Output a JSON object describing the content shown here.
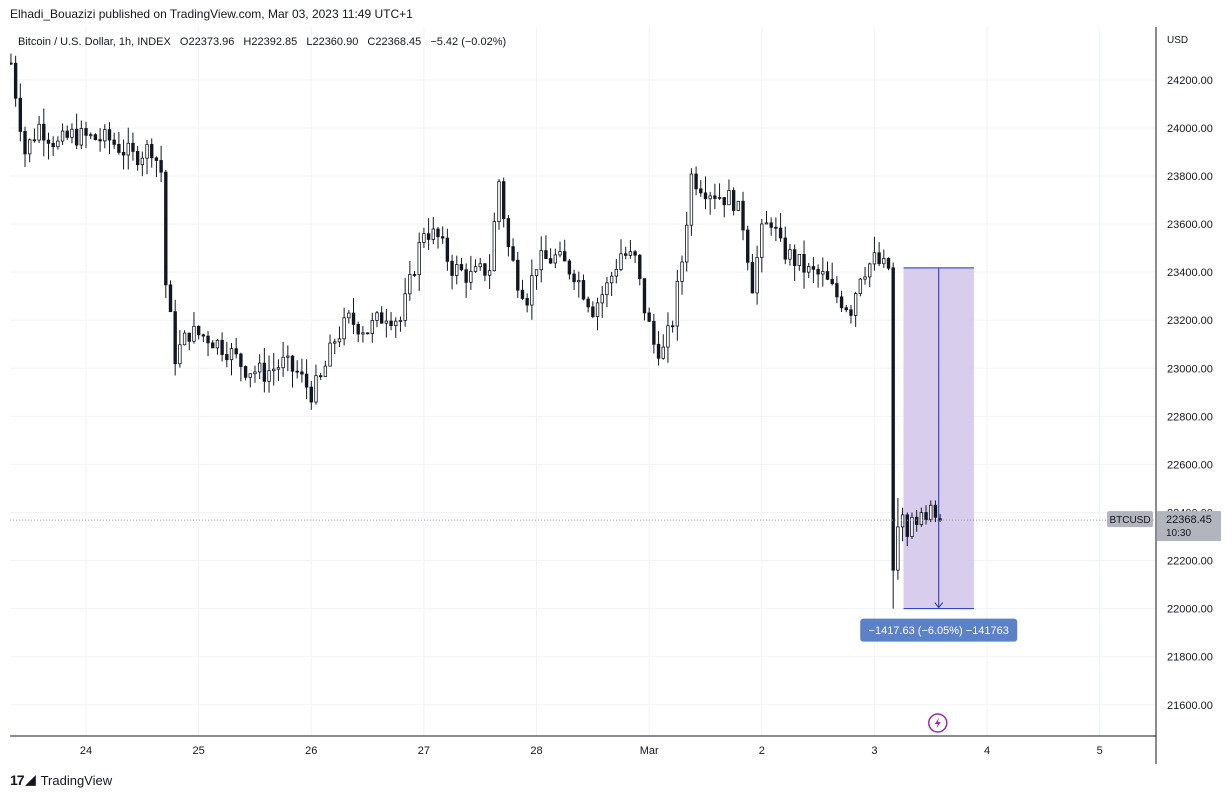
{
  "header": {
    "text": "Elhadi_Bouazizi published on TradingView.com, Mar 03, 2023 11:49 UTC+1"
  },
  "legend": {
    "symbol": "Bitcoin / U.S. Dollar, 1h, INDEX",
    "open_label": "O",
    "open": "22373.96",
    "high_label": "H",
    "high": "22392.85",
    "low_label": "L",
    "low": "22360.90",
    "close_label": "C",
    "close": "22368.45",
    "change": "−5.42 (−0.02%)"
  },
  "price_axis": {
    "currency": "USD"
  },
  "price_tag": {
    "symbol": "BTCUSD",
    "price": "22368.45",
    "countdown": "10:30"
  },
  "measure": {
    "label": "−1417.63 (−6.05%) −141763"
  },
  "footer": {
    "brand": "TradingView"
  },
  "colors": {
    "candle": "#131722",
    "grid": "#f0f3fa",
    "measure_fill": "#d1c4e9",
    "measure_line": "#1e32c8",
    "measure_label_bg": "#5b82c8",
    "price_tag_bg": "#b2b5be",
    "flash_icon": "#9c27b0"
  },
  "chart_data": {
    "type": "candlestick",
    "title": "Bitcoin / U.S. Dollar, 1h, INDEX",
    "ylabel": "USD",
    "ylim": [
      21470,
      24420
    ],
    "y_ticks": [
      21600,
      21800,
      22000,
      22200,
      22400,
      22600,
      22800,
      23000,
      23200,
      23400,
      23600,
      23800,
      24000,
      24200
    ],
    "x_ticks": [
      "24",
      "25",
      "26",
      "27",
      "28",
      "Mar",
      "2",
      "3",
      "4",
      "5"
    ],
    "x_tick_hours": [
      0,
      24,
      48,
      72,
      96,
      120,
      144,
      168,
      192,
      216
    ],
    "x_range_hours": [
      -16.2,
      228
    ],
    "grid": true,
    "last_price": 22368.45,
    "measure": {
      "start_hour": 171,
      "end_hour": 186,
      "from_price": 23418,
      "to_price": 22000,
      "change": -1417.63,
      "change_pct": -6.05
    },
    "anchors": [
      {
        "h": -16,
        "p": 24270
      },
      {
        "h": -13,
        "p": 23900
      },
      {
        "h": -10,
        "p": 24010
      },
      {
        "h": -6,
        "p": 23930
      },
      {
        "h": -3,
        "p": 23970
      },
      {
        "h": 0,
        "p": 23960
      },
      {
        "h": 5,
        "p": 23950
      },
      {
        "h": 10,
        "p": 23880
      },
      {
        "h": 14,
        "p": 23920
      },
      {
        "h": 16,
        "p": 23820
      },
      {
        "h": 17,
        "p": 23350
      },
      {
        "h": 19,
        "p": 23050
      },
      {
        "h": 22,
        "p": 23150
      },
      {
        "h": 26,
        "p": 23130
      },
      {
        "h": 30,
        "p": 23080
      },
      {
        "h": 34,
        "p": 23000
      },
      {
        "h": 38,
        "p": 22980
      },
      {
        "h": 42,
        "p": 23020
      },
      {
        "h": 45,
        "p": 22980
      },
      {
        "h": 48,
        "p": 22900
      },
      {
        "h": 50,
        "p": 22950
      },
      {
        "h": 53,
        "p": 23120
      },
      {
        "h": 56,
        "p": 23200
      },
      {
        "h": 60,
        "p": 23160
      },
      {
        "h": 64,
        "p": 23230
      },
      {
        "h": 67,
        "p": 23200
      },
      {
        "h": 69,
        "p": 23350
      },
      {
        "h": 72,
        "p": 23580
      },
      {
        "h": 75,
        "p": 23540
      },
      {
        "h": 78,
        "p": 23420
      },
      {
        "h": 82,
        "p": 23380
      },
      {
        "h": 86,
        "p": 23420
      },
      {
        "h": 88,
        "p": 23780
      },
      {
        "h": 90,
        "p": 23500
      },
      {
        "h": 92,
        "p": 23370
      },
      {
        "h": 94,
        "p": 23300
      },
      {
        "h": 96,
        "p": 23440
      },
      {
        "h": 100,
        "p": 23460
      },
      {
        "h": 104,
        "p": 23400
      },
      {
        "h": 108,
        "p": 23250
      },
      {
        "h": 111,
        "p": 23340
      },
      {
        "h": 114,
        "p": 23480
      },
      {
        "h": 117,
        "p": 23450
      },
      {
        "h": 119,
        "p": 23250
      },
      {
        "h": 121,
        "p": 23100
      },
      {
        "h": 123,
        "p": 23070
      },
      {
        "h": 125,
        "p": 23200
      },
      {
        "h": 127,
        "p": 23450
      },
      {
        "h": 129,
        "p": 23800
      },
      {
        "h": 132,
        "p": 23750
      },
      {
        "h": 135,
        "p": 23720
      },
      {
        "h": 138,
        "p": 23700
      },
      {
        "h": 140,
        "p": 23600
      },
      {
        "h": 142,
        "p": 23350
      },
      {
        "h": 144,
        "p": 23560
      },
      {
        "h": 146,
        "p": 23620
      },
      {
        "h": 148,
        "p": 23500
      },
      {
        "h": 151,
        "p": 23450
      },
      {
        "h": 154,
        "p": 23400
      },
      {
        "h": 157,
        "p": 23380
      },
      {
        "h": 160,
        "p": 23300
      },
      {
        "h": 163,
        "p": 23250
      },
      {
        "h": 165,
        "p": 23400
      },
      {
        "h": 168,
        "p": 23450
      },
      {
        "h": 170,
        "p": 23420
      },
      {
        "h": 171,
        "p": 23418
      }
    ],
    "crash_candles": [
      {
        "h": 172,
        "o": 23418,
        "hi": 23440,
        "l": 22000,
        "c": 22160
      },
      {
        "h": 173,
        "o": 22160,
        "hi": 22460,
        "l": 22120,
        "c": 22340
      },
      {
        "h": 174,
        "o": 22340,
        "hi": 22420,
        "l": 22280,
        "c": 22390
      },
      {
        "h": 175,
        "o": 22390,
        "hi": 22400,
        "l": 22260,
        "c": 22300
      },
      {
        "h": 176,
        "o": 22300,
        "hi": 22400,
        "l": 22290,
        "c": 22380
      },
      {
        "h": 177,
        "o": 22380,
        "hi": 22410,
        "l": 22320,
        "c": 22350
      },
      {
        "h": 178,
        "o": 22350,
        "hi": 22420,
        "l": 22340,
        "c": 22400
      },
      {
        "h": 179,
        "o": 22400,
        "hi": 22430,
        "l": 22350,
        "c": 22370
      },
      {
        "h": 180,
        "o": 22370,
        "hi": 22450,
        "l": 22360,
        "c": 22430
      },
      {
        "h": 181,
        "o": 22430,
        "hi": 22450,
        "l": 22360,
        "c": 22380
      },
      {
        "h": 182,
        "o": 22374,
        "hi": 22393,
        "l": 22361,
        "c": 22368
      }
    ]
  }
}
